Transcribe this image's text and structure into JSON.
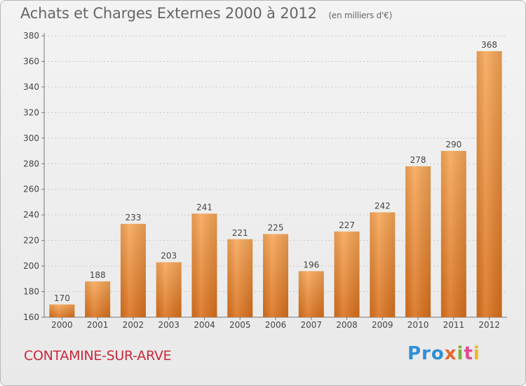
{
  "chart_data": {
    "type": "bar",
    "title": "Achats et Charges Externes 2000 à 2012",
    "unit_label": "(en milliers d'€)",
    "xlabel": "",
    "ylabel": "",
    "categories": [
      "2000",
      "2001",
      "2002",
      "2003",
      "2004",
      "2005",
      "2006",
      "2007",
      "2008",
      "2009",
      "2010",
      "2011",
      "2012"
    ],
    "values": [
      170,
      188,
      233,
      203,
      241,
      221,
      225,
      196,
      227,
      242,
      278,
      290,
      368
    ],
    "ylim": [
      160,
      380
    ],
    "yticks": [
      160,
      180,
      200,
      220,
      240,
      260,
      280,
      300,
      320,
      340,
      360,
      380
    ],
    "grid": true,
    "bar_color_top": "#f6a657",
    "bar_color_bottom": "#d9701c"
  },
  "footer": {
    "commune": "CONTAMINE-SUR-ARVE",
    "logo": [
      "Pro",
      "x",
      "i",
      "t",
      "i"
    ]
  }
}
